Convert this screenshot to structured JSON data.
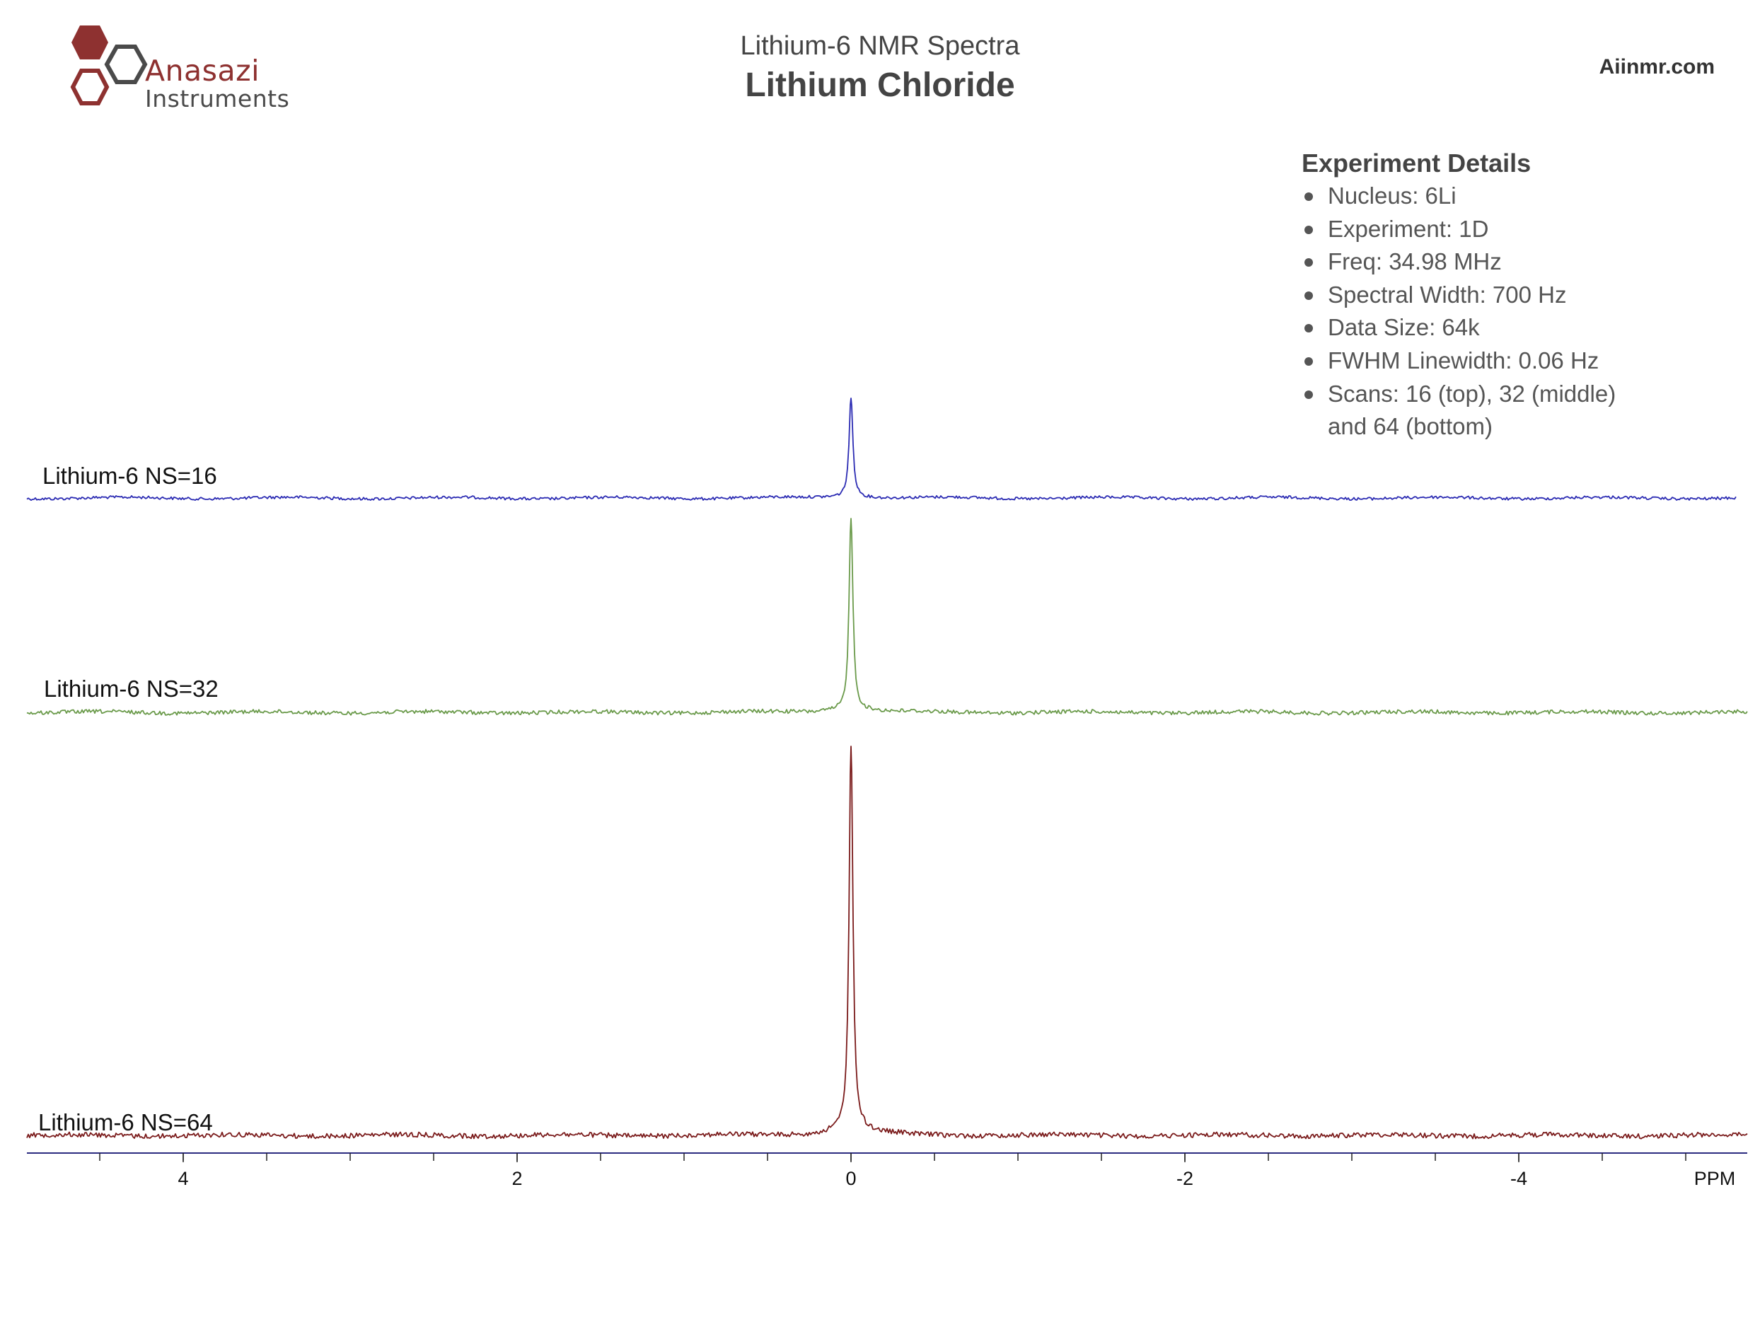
{
  "logo": {
    "word1": "Anasazi",
    "word2": "Instruments",
    "colors": {
      "primary": "#8e3130",
      "secondary": "#4a4a4a"
    }
  },
  "header": {
    "subtitle": "Lithium-6 NMR Spectra",
    "title": "Lithium Chloride",
    "site": "Aiinmr.com"
  },
  "details": {
    "heading": "Experiment Details",
    "items": [
      "Nucleus: 6Li",
      "Experiment: 1D",
      "Freq: 34.98 MHz",
      "Spectral Width: 700 Hz",
      "Data Size: 64k",
      "FWHM Linewidth: 0.06 Hz",
      "Scans: 16 (top), 32 (middle)",
      "and 64 (bottom)"
    ]
  },
  "chart_data": {
    "type": "line",
    "title": "Lithium Chloride",
    "subtitle": "Lithium-6 NMR Spectra",
    "xlabel": "PPM",
    "ylabel": "",
    "xlim": [
      4.95,
      -5.35
    ],
    "x_reversed": true,
    "x_ticks": [
      4,
      2,
      0,
      -2,
      -4
    ],
    "x_tick_labels": [
      "4",
      "2",
      "0",
      "-2",
      "-4"
    ],
    "grid": false,
    "legend": "none",
    "series": [
      {
        "name": "Lithium-6 NS=16",
        "color": "#2b2bb3",
        "peak_ppm": 0.0,
        "peak_height": 0.27,
        "noise": 0.004
      },
      {
        "name": "Lithium-6 NS=32",
        "color": "#6a9a4a",
        "peak_ppm": 0.0,
        "peak_height": 0.53,
        "noise": 0.005
      },
      {
        "name": "Lithium-6 NS=64",
        "color": "#7a1a1a",
        "peak_ppm": 0.0,
        "peak_height": 1.0,
        "noise": 0.006
      }
    ]
  }
}
